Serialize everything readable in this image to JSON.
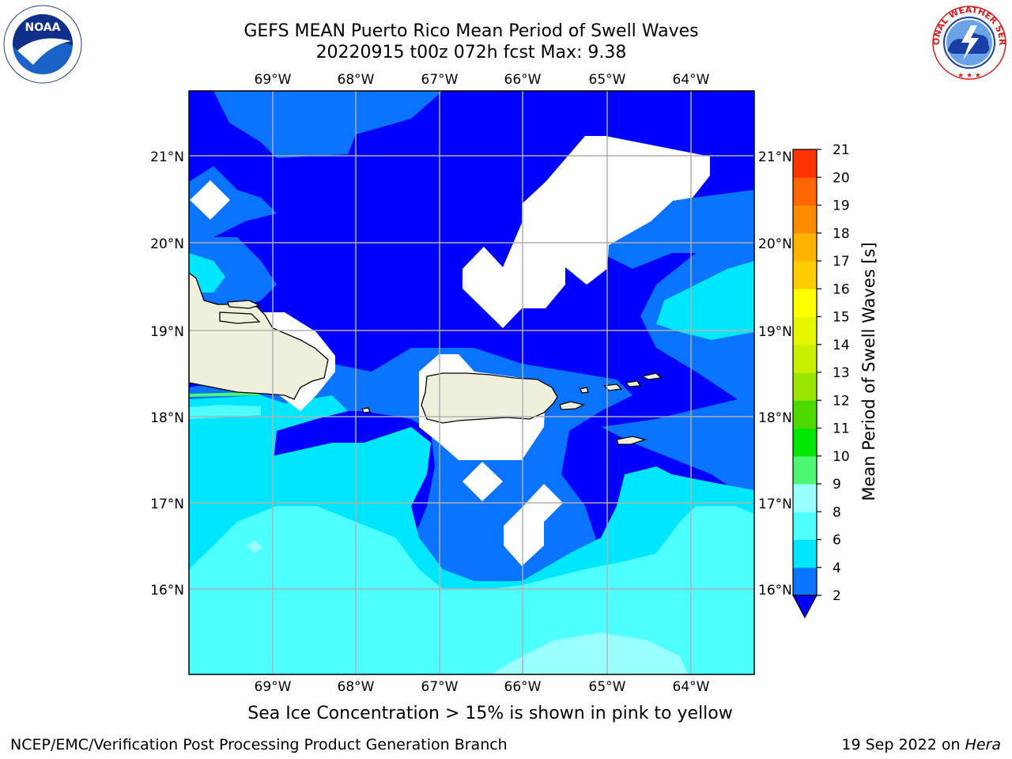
{
  "title": {
    "line1": "GEFS MEAN Puerto Rico Mean Period of Swell Waves",
    "line2": "20220915 t00z 072h fcst   Max: 9.38"
  },
  "map": {
    "lon_ticks": [
      "69°W",
      "68°W",
      "67°W",
      "66°W",
      "65°W",
      "64°W"
    ],
    "lat_ticks": [
      "21°N",
      "20°N",
      "19°N",
      "18°N",
      "17°N",
      "16°N"
    ],
    "ocean_color": "#0000ff",
    "land_color": "#efefde"
  },
  "colorbar": {
    "label": "Mean Period of Swell Waves [s]",
    "tick_labels": [
      "2",
      "4",
      "6",
      "8",
      "9",
      "10",
      "11",
      "12",
      "13",
      "14",
      "15",
      "16",
      "17",
      "18",
      "19",
      "20",
      "21"
    ],
    "colors": [
      "#0a73ff",
      "#00e6ff",
      "#4dffff",
      "#9affff",
      "#4df773",
      "#00e600",
      "#4dd900",
      "#9ae600",
      "#ccee00",
      "#e6f500",
      "#ffff00",
      "#ffcc00",
      "#ffb300",
      "#ff8c00",
      "#ff6600",
      "#ff3300",
      "#ff0000"
    ],
    "under_color": "#0000ff"
  },
  "note": "Sea Ice Concentration > 15% is shown in pink to yellow",
  "footer": {
    "credit": "NCEP/EMC/Verification Post Processing Product Generation Branch",
    "date": "19 Sep 2022 on",
    "machine": "Hera"
  },
  "logos": {
    "noaa_text": "NOAA",
    "nws_text": "NATIONAL WEATHER SERVICE"
  }
}
